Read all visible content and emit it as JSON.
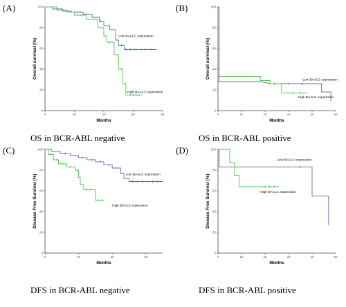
{
  "labels": [
    "(A)",
    "(B)",
    "(C)",
    "(D)"
  ],
  "captions": [
    "OS in BCR-ABL negative",
    "OS in BCR-ABL positive",
    "DFS in BCR-ABL negative",
    "DFS in BCR-ABL positive"
  ],
  "colors": {
    "low": "#5b6fa8",
    "high": "#4fc24f",
    "axis": "#444444"
  },
  "chart_data": [
    {
      "type": "line",
      "title": "",
      "xlabel": "Months",
      "ylabel": "Overall survival (%)",
      "xlim": [
        0,
        80
      ],
      "ylim": [
        0,
        100
      ],
      "xticks": [
        "0",
        "20",
        "40",
        "60",
        "80"
      ],
      "yticks": [
        "0",
        "20",
        "40",
        "60",
        "80",
        "100"
      ],
      "series": [
        {
          "name": "Low BAALC expression",
          "color": "low",
          "steps": [
            [
              0,
              100
            ],
            [
              5,
              100
            ],
            [
              5,
              98
            ],
            [
              12,
              98
            ],
            [
              12,
              96
            ],
            [
              18,
              96
            ],
            [
              18,
              95
            ],
            [
              26,
              95
            ],
            [
              26,
              93
            ],
            [
              32,
              93
            ],
            [
              32,
              90
            ],
            [
              37,
              90
            ],
            [
              37,
              86
            ],
            [
              40,
              86
            ],
            [
              40,
              82
            ],
            [
              44,
              82
            ],
            [
              44,
              78
            ],
            [
              48,
              78
            ],
            [
              48,
              68
            ],
            [
              50,
              68
            ],
            [
              50,
              63
            ],
            [
              54,
              63
            ],
            [
              54,
              59
            ],
            [
              76,
              59
            ]
          ],
          "censors": [
            [
              20,
              95
            ],
            [
              22,
              95
            ],
            [
              24,
              95
            ],
            [
              28,
              93
            ],
            [
              38,
              86
            ],
            [
              52,
              63
            ],
            [
              55,
              59
            ],
            [
              58,
              59
            ],
            [
              60,
              59
            ],
            [
              62,
              59
            ],
            [
              65,
              59
            ],
            [
              68,
              59
            ],
            [
              72,
              59
            ]
          ]
        },
        {
          "name": "High BAALC expression",
          "color": "high",
          "steps": [
            [
              0,
              100
            ],
            [
              8,
              100
            ],
            [
              8,
              97
            ],
            [
              15,
              97
            ],
            [
              15,
              95
            ],
            [
              20,
              95
            ],
            [
              20,
              92
            ],
            [
              28,
              92
            ],
            [
              28,
              88
            ],
            [
              36,
              88
            ],
            [
              36,
              80
            ],
            [
              40,
              80
            ],
            [
              40,
              72
            ],
            [
              42,
              72
            ],
            [
              42,
              66
            ],
            [
              47,
              66
            ],
            [
              47,
              54
            ],
            [
              50,
              54
            ],
            [
              50,
              40
            ],
            [
              53,
              40
            ],
            [
              53,
              26
            ],
            [
              55,
              26
            ],
            [
              55,
              15
            ],
            [
              66,
              15
            ]
          ],
          "censors": [
            [
              22,
              92
            ],
            [
              25,
              92
            ],
            [
              44,
              66
            ],
            [
              58,
              15
            ],
            [
              60,
              15
            ],
            [
              62,
              15
            ],
            [
              64,
              15
            ]
          ]
        }
      ],
      "annotations": [
        {
          "text": "Low BAALC expression",
          "x": 50,
          "y": 71
        },
        {
          "text": "High BAALC expression",
          "x": 56,
          "y": 17
        }
      ]
    },
    {
      "type": "line",
      "title": "",
      "xlabel": "Months",
      "ylabel": "Overall survival (%)",
      "xlim": [
        0,
        50
      ],
      "ylim": [
        0,
        100
      ],
      "xticks": [
        "0",
        "10",
        "20",
        "30",
        "40",
        "50"
      ],
      "yticks": [
        "0",
        "20",
        "40",
        "60",
        "80",
        "100"
      ],
      "series": [
        {
          "name": "Low BAALC expression",
          "color": "low",
          "steps": [
            [
              0,
              100
            ],
            [
              0.5,
              100
            ],
            [
              0.5,
              28
            ],
            [
              18,
              28
            ],
            [
              18,
              28
            ],
            [
              22,
              26
            ],
            [
              22,
              26
            ],
            [
              29,
              26
            ],
            [
              29,
              26
            ],
            [
              35,
              26
            ],
            [
              35,
              26
            ],
            [
              44,
              26
            ],
            [
              44,
              18
            ],
            [
              48,
              18
            ],
            [
              48,
              9
            ]
          ],
          "censors": [
            [
              24,
              26
            ],
            [
              30,
              26
            ],
            [
              36,
              26
            ]
          ]
        },
        {
          "name": "High BAALC expression",
          "color": "high",
          "steps": [
            [
              0,
              100
            ],
            [
              0.5,
              100
            ],
            [
              0.5,
              33
            ],
            [
              18,
              33
            ],
            [
              18,
              29
            ],
            [
              22,
              29
            ],
            [
              22,
              26
            ],
            [
              27,
              26
            ],
            [
              27,
              17
            ],
            [
              38,
              17
            ]
          ],
          "censors": [
            [
              24,
              26
            ],
            [
              32,
              17
            ],
            [
              35,
              17
            ]
          ]
        }
      ],
      "annotations": [
        {
          "text": "Low BAALC expression",
          "x": 36,
          "y": 29
        },
        {
          "text": "High BAALC expression",
          "x": 34,
          "y": 12
        }
      ]
    },
    {
      "type": "line",
      "title": "",
      "xlabel": "Months",
      "ylabel": "Disease Free Survival (%)",
      "xlim": [
        0,
        70
      ],
      "ylim": [
        0,
        100
      ],
      "xticks": [
        "0",
        "20",
        "40",
        "60"
      ],
      "yticks": [
        "0",
        "20",
        "40",
        "60",
        "80",
        "100"
      ],
      "series": [
        {
          "name": "Low BAALC expression",
          "color": "low",
          "steps": [
            [
              0,
              100
            ],
            [
              4,
              100
            ],
            [
              4,
              98
            ],
            [
              9,
              98
            ],
            [
              9,
              96
            ],
            [
              15,
              96
            ],
            [
              15,
              94
            ],
            [
              20,
              94
            ],
            [
              20,
              92
            ],
            [
              25,
              92
            ],
            [
              25,
              90
            ],
            [
              30,
              90
            ],
            [
              30,
              88
            ],
            [
              35,
              88
            ],
            [
              35,
              85
            ],
            [
              40,
              85
            ],
            [
              40,
              82
            ],
            [
              45,
              82
            ],
            [
              45,
              77
            ],
            [
              47,
              77
            ],
            [
              47,
              72
            ],
            [
              50,
              72
            ],
            [
              50,
              69
            ],
            [
              70,
              69
            ]
          ],
          "censors": [
            [
              12,
              96
            ],
            [
              22,
              92
            ],
            [
              28,
              90
            ],
            [
              33,
              88
            ],
            [
              38,
              85
            ],
            [
              42,
              82
            ],
            [
              52,
              69
            ],
            [
              55,
              69
            ],
            [
              58,
              69
            ],
            [
              61,
              69
            ],
            [
              64,
              69
            ],
            [
              67,
              69
            ]
          ]
        },
        {
          "name": "High BAALC expression",
          "color": "high",
          "steps": [
            [
              0,
              100
            ],
            [
              2,
              100
            ],
            [
              2,
              95
            ],
            [
              5,
              95
            ],
            [
              5,
              90
            ],
            [
              8,
              90
            ],
            [
              8,
              86
            ],
            [
              13,
              86
            ],
            [
              13,
              83
            ],
            [
              18,
              83
            ],
            [
              18,
              80
            ],
            [
              20,
              80
            ],
            [
              20,
              73
            ],
            [
              21,
              73
            ],
            [
              21,
              66
            ],
            [
              23,
              66
            ],
            [
              23,
              61
            ],
            [
              30,
              61
            ],
            [
              30,
              51
            ],
            [
              35,
              51
            ]
          ],
          "censors": [
            [
              7,
              90
            ],
            [
              10,
              86
            ],
            [
              15,
              83
            ],
            [
              25,
              61
            ],
            [
              27,
              61
            ],
            [
              32,
              51
            ],
            [
              34,
              51
            ]
          ]
        }
      ],
      "annotations": [
        {
          "text": "Low BAALC expression",
          "x": 48,
          "y": 75
        },
        {
          "text": "High BAALC expression",
          "x": 40,
          "y": 45
        }
      ]
    },
    {
      "type": "line",
      "title": "",
      "xlabel": "Months",
      "ylabel": "Disease Free Survival (%)",
      "xlim": [
        0,
        50
      ],
      "ylim": [
        0,
        100
      ],
      "xticks": [
        "0",
        "10",
        "20",
        "30",
        "40",
        "50"
      ],
      "yticks": [
        "0",
        "20",
        "40",
        "60",
        "80",
        "100"
      ],
      "series": [
        {
          "name": "Low BAALC expression",
          "color": "low",
          "steps": [
            [
              0,
              100
            ],
            [
              0.5,
              100
            ],
            [
              0.5,
              83
            ],
            [
              40,
              83
            ],
            [
              40,
              55
            ],
            [
              47,
              55
            ],
            [
              47,
              27
            ]
          ],
          "censors": [
            [
              35,
              83
            ]
          ]
        },
        {
          "name": "High BAALC expression",
          "color": "high",
          "steps": [
            [
              0,
              100
            ],
            [
              5,
              100
            ],
            [
              5,
              87
            ],
            [
              7,
              87
            ],
            [
              7,
              75
            ],
            [
              9,
              75
            ],
            [
              9,
              64
            ],
            [
              26,
              64
            ]
          ],
          "censors": [
            [
              20,
              64
            ],
            [
              22,
              64
            ],
            [
              24,
              64
            ]
          ]
        }
      ],
      "annotations": [
        {
          "text": "Low BAALC expression",
          "x": 25,
          "y": 89
        },
        {
          "text": "High BAALC expression",
          "x": 18,
          "y": 58
        }
      ]
    }
  ]
}
